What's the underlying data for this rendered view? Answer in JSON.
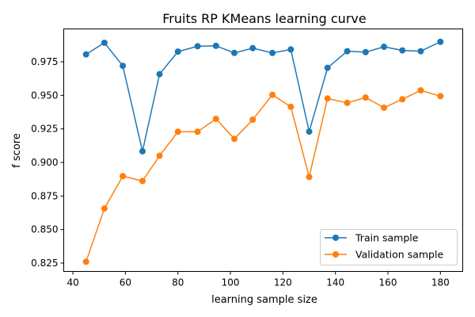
{
  "chart_data": {
    "type": "line",
    "title": "Fruits RP KMeans learning curve",
    "xlabel": "learning sample size",
    "ylabel": "f score",
    "x": [
      45,
      52,
      59,
      66.5,
      73,
      80,
      87.5,
      94.5,
      101.5,
      108.5,
      116,
      123,
      130,
      137,
      144.5,
      151.5,
      158.5,
      165.5,
      172.5,
      180
    ],
    "xlim": [
      36.5,
      188.5
    ],
    "ylim": [
      0.8188,
      0.9995
    ],
    "xticks": [
      40,
      60,
      80,
      100,
      120,
      140,
      160,
      180
    ],
    "yticks": [
      0.825,
      0.85,
      0.875,
      0.9,
      0.925,
      0.95,
      0.975
    ],
    "xtick_labels": [
      "40",
      "60",
      "80",
      "100",
      "120",
      "140",
      "160",
      "180"
    ],
    "ytick_labels": [
      "0.825",
      "0.850",
      "0.875",
      "0.900",
      "0.925",
      "0.950",
      "0.975"
    ],
    "grid": false,
    "legend_position": "lower-right",
    "series": [
      {
        "name": "Train sample",
        "color": "#1f77b4",
        "values": [
          0.9805,
          0.9892,
          0.972,
          0.9083,
          0.9658,
          0.9826,
          0.9866,
          0.9869,
          0.9816,
          0.9852,
          0.9816,
          0.9842,
          0.923,
          0.9705,
          0.9829,
          0.9822,
          0.9862,
          0.9835,
          0.9829,
          0.9899
        ]
      },
      {
        "name": "Validation sample",
        "color": "#ff7f0e",
        "values": [
          0.826,
          0.8657,
          0.8898,
          0.8862,
          0.905,
          0.9229,
          0.9229,
          0.9325,
          0.9176,
          0.9319,
          0.9504,
          0.9415,
          0.8892,
          0.9477,
          0.9444,
          0.9484,
          0.9408,
          0.9471,
          0.9537,
          0.9494
        ]
      }
    ]
  }
}
